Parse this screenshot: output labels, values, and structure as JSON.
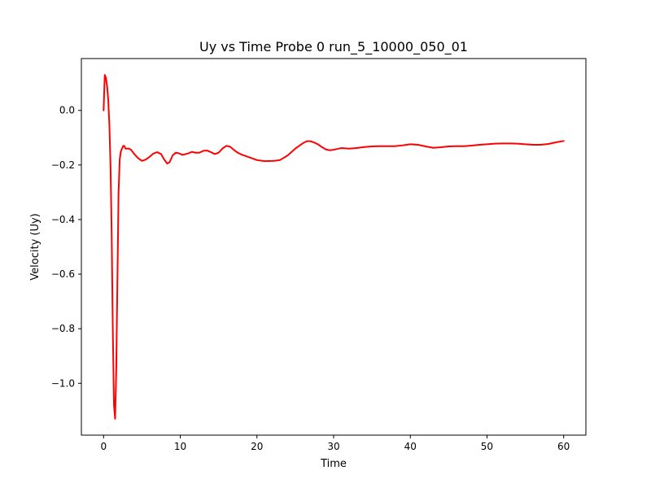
{
  "chart_data": {
    "type": "line",
    "title": "Uy vs Time Probe 0 run_5_10000_050_01",
    "xlabel": "Time",
    "ylabel": "Velocity (Uy)",
    "xlim": [
      -2.9,
      62.9
    ],
    "ylim": [
      -1.19,
      0.19
    ],
    "xticks": [
      0,
      10,
      20,
      30,
      40,
      50,
      60
    ],
    "yticks": [
      0.0,
      -0.2,
      -0.4,
      -0.6,
      -0.8,
      -1.0
    ],
    "ytick_labels": [
      "0.0",
      "−0.2",
      "−0.4",
      "−0.6",
      "−0.8",
      "−1.0"
    ],
    "grid": false,
    "series": [
      {
        "color": "#ff0000",
        "x": [
          0,
          0.15,
          0.3,
          0.45,
          0.6,
          0.75,
          0.9,
          1.05,
          1.2,
          1.35,
          1.5,
          1.65,
          1.8,
          1.95,
          2.1,
          2.25,
          2.4,
          2.55,
          2.7,
          2.85,
          3.0,
          3.3,
          3.6,
          4.0,
          4.5,
          5.0,
          5.5,
          6.0,
          6.5,
          7.0,
          7.5,
          7.9,
          8.3,
          8.6,
          9.0,
          9.4,
          9.8,
          10.3,
          11.0,
          11.5,
          12.0,
          12.5,
          13.0,
          13.5,
          14.0,
          14.5,
          15.0,
          15.5,
          16.0,
          16.5,
          17.0,
          17.5,
          18.0,
          19.0,
          20.0,
          21.0,
          22.0,
          22.5,
          23.0,
          24.0,
          25.0,
          26.0,
          26.5,
          27.0,
          27.5,
          28.0,
          28.5,
          29.0,
          29.5,
          30.0,
          31.0,
          32.0,
          33.0,
          34.0,
          35.0,
          36.0,
          37.0,
          38.0,
          39.0,
          40.0,
          41.0,
          42.0,
          43.0,
          44.0,
          45.0,
          46.0,
          47.0,
          48.0,
          49.0,
          50.0,
          51.0,
          52.0,
          53.0,
          54.0,
          55.0,
          56.0,
          57.0,
          58.0,
          59.0,
          60.0
        ],
        "y": [
          0.0,
          0.13,
          0.12,
          0.09,
          0.04,
          -0.05,
          -0.2,
          -0.45,
          -0.8,
          -1.08,
          -1.13,
          -0.95,
          -0.62,
          -0.3,
          -0.18,
          -0.15,
          -0.14,
          -0.13,
          -0.13,
          -0.14,
          -0.14,
          -0.14,
          -0.145,
          -0.16,
          -0.175,
          -0.185,
          -0.18,
          -0.17,
          -0.158,
          -0.153,
          -0.16,
          -0.18,
          -0.195,
          -0.19,
          -0.165,
          -0.155,
          -0.157,
          -0.163,
          -0.158,
          -0.152,
          -0.155,
          -0.155,
          -0.148,
          -0.147,
          -0.153,
          -0.16,
          -0.155,
          -0.14,
          -0.13,
          -0.133,
          -0.145,
          -0.155,
          -0.162,
          -0.172,
          -0.182,
          -0.186,
          -0.185,
          -0.184,
          -0.182,
          -0.165,
          -0.14,
          -0.12,
          -0.113,
          -0.113,
          -0.118,
          -0.125,
          -0.135,
          -0.143,
          -0.146,
          -0.144,
          -0.138,
          -0.14,
          -0.138,
          -0.134,
          -0.132,
          -0.131,
          -0.131,
          -0.131,
          -0.128,
          -0.124,
          -0.126,
          -0.132,
          -0.137,
          -0.135,
          -0.132,
          -0.131,
          -0.131,
          -0.129,
          -0.126,
          -0.124,
          -0.122,
          -0.121,
          -0.121,
          -0.122,
          -0.124,
          -0.126,
          -0.126,
          -0.123,
          -0.117,
          -0.112
        ]
      }
    ]
  }
}
